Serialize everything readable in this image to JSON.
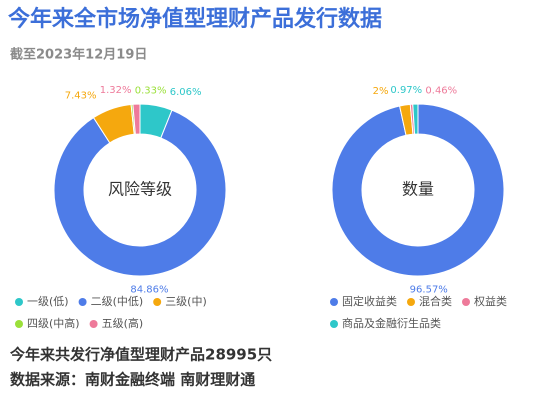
{
  "header": {
    "title": "今年来全市场净值型理财产品发行数据",
    "subtitle": "截至2023年12月19日"
  },
  "chart_data": [
    {
      "type": "pie",
      "donut": true,
      "center_label": "风险等级",
      "categories": [
        "一级(低)",
        "二级(中低)",
        "三级(中)",
        "四级(中高)",
        "五级(高)"
      ],
      "values": [
        6.06,
        84.86,
        7.43,
        0.33,
        1.32
      ],
      "value_labels": [
        "6.06%",
        "84.86%",
        "7.43%",
        "0.33%",
        "1.32%"
      ],
      "colors": [
        "#2ec7c9",
        "#4e7ce8",
        "#f5a80e",
        "#9be03a",
        "#ee7a9a"
      ]
    },
    {
      "type": "pie",
      "donut": true,
      "center_label": "数量",
      "categories": [
        "固定收益类",
        "混合类",
        "权益类",
        "商品及金融衍生品类"
      ],
      "values": [
        96.57,
        2,
        0.46,
        0.97
      ],
      "value_labels": [
        "96.57%",
        "2%",
        "0.46%",
        "0.97%"
      ],
      "colors": [
        "#4e7ce8",
        "#f5a80e",
        "#ee7a9a",
        "#2ec7c9"
      ]
    }
  ],
  "footer": {
    "summary": "今年来共发行净值型理财产品28995只",
    "source": "数据来源：南财金融终端 南财理财通"
  }
}
